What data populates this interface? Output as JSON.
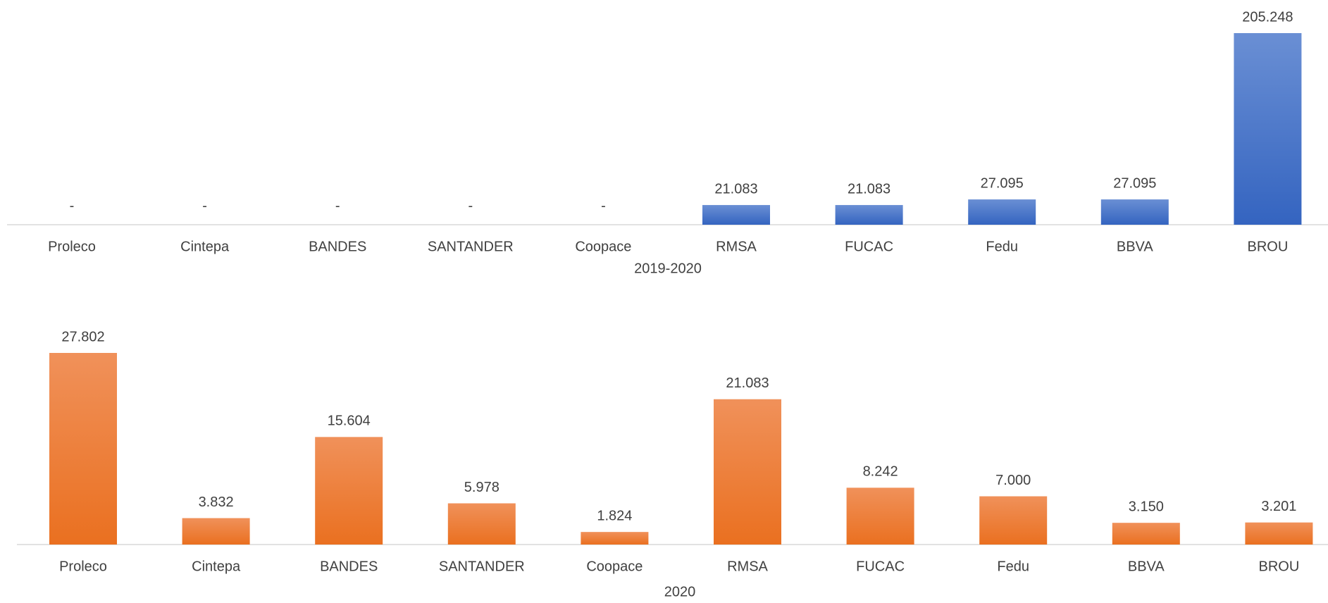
{
  "chart_data": [
    {
      "type": "bar",
      "title": "2019-2020",
      "categories": [
        "Proleco",
        "Cintepa",
        "BANDES",
        "SANTANDER",
        "Coopace",
        "RMSA",
        "FUCAC",
        "Fedu",
        "BBVA",
        "BROU"
      ],
      "values": [
        0,
        0,
        0,
        0,
        0,
        21083,
        21083,
        27095,
        27095,
        205248
      ],
      "value_labels": [
        "-",
        "-",
        "-",
        "-",
        "-",
        "21.083",
        "21.083",
        "27.095",
        "27.095",
        "205.248"
      ],
      "color": "#4472c4"
    },
    {
      "type": "bar",
      "title": "2020",
      "categories": [
        "Proleco",
        "Cintepa",
        "BANDES",
        "SANTANDER",
        "Coopace",
        "RMSA",
        "FUCAC",
        "Fedu",
        "BBVA",
        "BROU"
      ],
      "values": [
        27802,
        3832,
        15604,
        5978,
        1824,
        21083,
        8242,
        7000,
        3150,
        3201
      ],
      "value_labels": [
        "27.802",
        "3.832",
        "15.604",
        "5.978",
        "1.824",
        "21.083",
        "8.242",
        "7.000",
        "3.150",
        "3.201"
      ],
      "color": "#ed7d31"
    }
  ]
}
